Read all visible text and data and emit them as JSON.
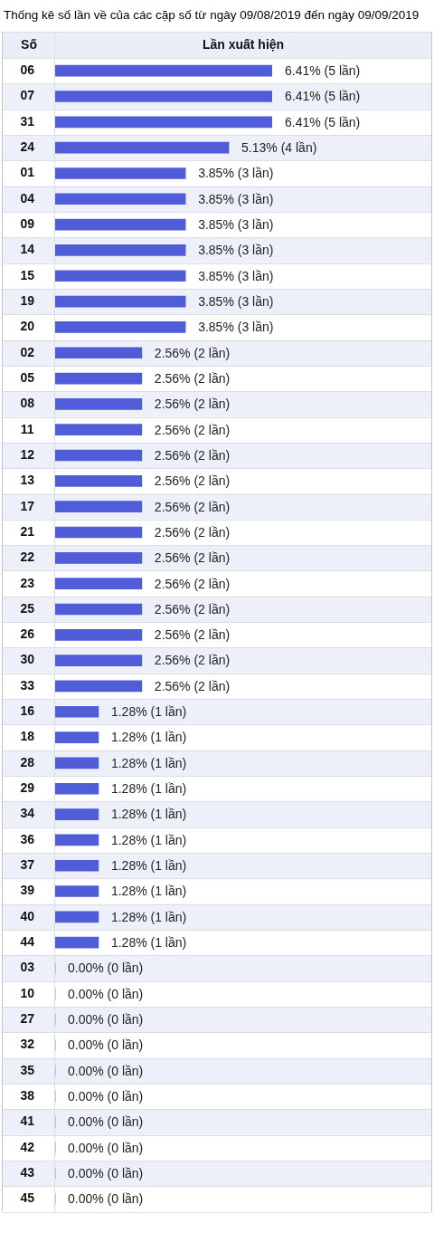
{
  "chart_data": {
    "type": "bar",
    "orientation": "horizontal",
    "tick_labels": "y",
    "title": "Thống kê số lần về của các cặp số từ ngày 09/08/2019 đến ngày 09/09/2019",
    "ylabel": "Số",
    "xlabel": "Lần xuất hiện",
    "color": "#505cd8",
    "categories": [
      "06",
      "07",
      "31",
      "24",
      "01",
      "04",
      "09",
      "14",
      "15",
      "19",
      "20",
      "02",
      "05",
      "08",
      "11",
      "12",
      "13",
      "17",
      "21",
      "22",
      "23",
      "25",
      "26",
      "30",
      "33",
      "16",
      "18",
      "28",
      "29",
      "34",
      "36",
      "37",
      "39",
      "40",
      "44",
      "03",
      "10",
      "27",
      "32",
      "35",
      "38",
      "41",
      "42",
      "43",
      "45"
    ],
    "values": [
      6.41,
      6.41,
      6.41,
      5.13,
      3.85,
      3.85,
      3.85,
      3.85,
      3.85,
      3.85,
      3.85,
      2.56,
      2.56,
      2.56,
      2.56,
      2.56,
      2.56,
      2.56,
      2.56,
      2.56,
      2.56,
      2.56,
      2.56,
      2.56,
      2.56,
      1.28,
      1.28,
      1.28,
      1.28,
      1.28,
      1.28,
      1.28,
      1.28,
      1.28,
      1.28,
      0.0,
      0.0,
      0.0,
      0.0,
      0.0,
      0.0,
      0.0,
      0.0,
      0.0,
      0.0
    ],
    "value_labels": [
      "6.41% (5 lần)",
      "6.41% (5 lần)",
      "6.41% (5 lần)",
      "5.13% (4 lần)",
      "3.85% (3 lần)",
      "3.85% (3 lần)",
      "3.85% (3 lần)",
      "3.85% (3 lần)",
      "3.85% (3 lần)",
      "3.85% (3 lần)",
      "3.85% (3 lần)",
      "2.56% (2 lần)",
      "2.56% (2 lần)",
      "2.56% (2 lần)",
      "2.56% (2 lần)",
      "2.56% (2 lần)",
      "2.56% (2 lần)",
      "2.56% (2 lần)",
      "2.56% (2 lần)",
      "2.56% (2 lần)",
      "2.56% (2 lần)",
      "2.56% (2 lần)",
      "2.56% (2 lần)",
      "2.56% (2 lần)",
      "2.56% (2 lần)",
      "1.28% (1 lần)",
      "1.28% (1 lần)",
      "1.28% (1 lần)",
      "1.28% (1 lần)",
      "1.28% (1 lần)",
      "1.28% (1 lần)",
      "1.28% (1 lần)",
      "1.28% (1 lần)",
      "1.28% (1 lần)",
      "1.28% (1 lần)",
      "0.00% (0 lần)",
      "0.00% (0 lần)",
      "0.00% (0 lần)",
      "0.00% (0 lần)",
      "0.00% (0 lần)",
      "0.00% (0 lần)",
      "0.00% (0 lần)",
      "0.00% (0 lần)",
      "0.00% (0 lần)",
      "0.00% (0 lần)"
    ]
  }
}
